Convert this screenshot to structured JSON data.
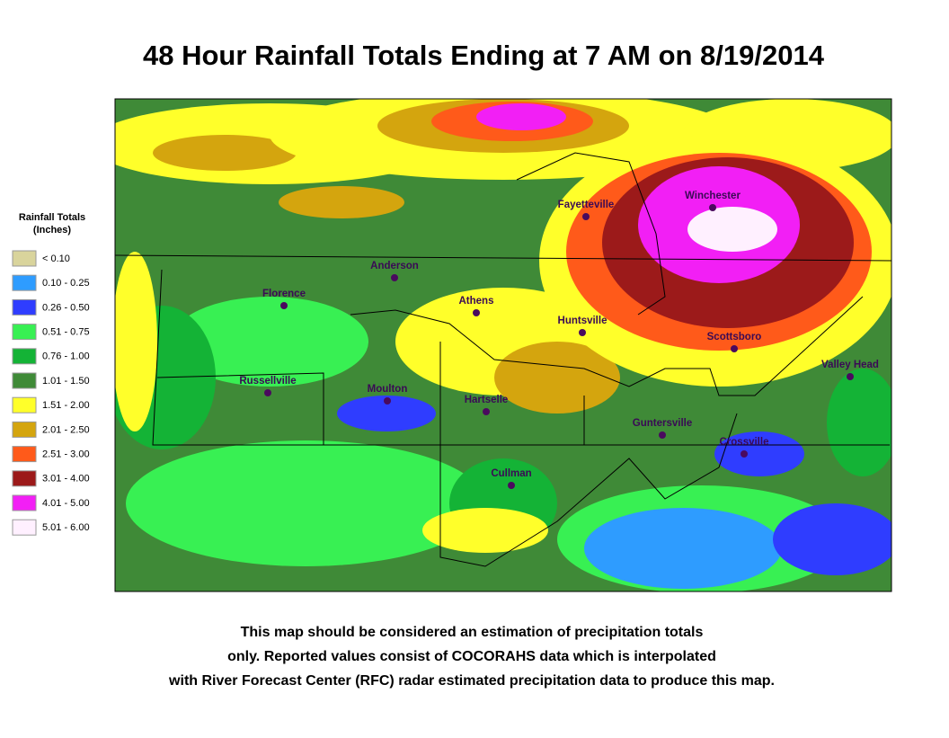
{
  "header": {
    "title": "48 Hour Rainfall Totals Ending at 7 AM on 8/19/2014"
  },
  "legend": {
    "title": [
      "Rainfall Totals",
      "(Inches)"
    ],
    "items": [
      {
        "label": "< 0.10",
        "color": "#d9d49c"
      },
      {
        "label": "0.10 - 0.25",
        "color": "#2e9cff"
      },
      {
        "label": "0.26 - 0.50",
        "color": "#2f3dff"
      },
      {
        "label": "0.51 - 0.75",
        "color": "#38f053"
      },
      {
        "label": "0.76 - 1.00",
        "color": "#14b336"
      },
      {
        "label": "1.01 - 1.50",
        "color": "#3f8a37"
      },
      {
        "label": "1.51 - 2.00",
        "color": "#ffff2a"
      },
      {
        "label": "2.01 - 2.50",
        "color": "#d4a50e"
      },
      {
        "label": "2.51 - 3.00",
        "color": "#ff5a1a"
      },
      {
        "label": "3.01 - 4.00",
        "color": "#9c1a1a"
      },
      {
        "label": "4.01 - 5.00",
        "color": "#f21ff5"
      },
      {
        "label": "5.01 - 6.00",
        "color": "#fff0ff"
      }
    ]
  },
  "cities": [
    "Winchester",
    "Fayetteville",
    "Anderson",
    "Florence",
    "Athens",
    "Huntsville",
    "Scottsboro",
    "Valley Head",
    "Russellville",
    "Moulton",
    "Hartselle",
    "Guntersville",
    "Crossville",
    "Cullman"
  ],
  "footnote": [
    "This map should be considered an estimation of precipitation totals",
    "only.  Reported values consist of COCORAHS data which is  interpolated",
    "with River Forecast Center (RFC) radar estimated precipitation data to produce this map."
  ]
}
